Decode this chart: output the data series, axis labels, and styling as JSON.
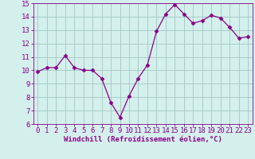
{
  "x": [
    0,
    1,
    2,
    3,
    4,
    5,
    6,
    7,
    8,
    9,
    10,
    11,
    12,
    13,
    14,
    15,
    16,
    17,
    18,
    19,
    20,
    21,
    22,
    23
  ],
  "y": [
    9.9,
    10.2,
    10.2,
    11.1,
    10.2,
    10.0,
    10.0,
    9.4,
    7.6,
    6.5,
    8.1,
    9.4,
    10.4,
    12.9,
    14.2,
    14.9,
    14.2,
    13.5,
    13.7,
    14.1,
    13.9,
    13.2,
    12.4,
    12.5
  ],
  "line_color": "#880088",
  "marker": "D",
  "marker_size": 2.5,
  "bg_color": "#d4f0ec",
  "grid_color": "#a8ccc8",
  "xlabel": "Windchill (Refroidissement éolien,°C)",
  "ylim": [
    6,
    15
  ],
  "xlim": [
    -0.5,
    23.5
  ],
  "yticks": [
    6,
    7,
    8,
    9,
    10,
    11,
    12,
    13,
    14,
    15
  ],
  "xtick_labels": [
    "0",
    "1",
    "2",
    "3",
    "4",
    "5",
    "6",
    "7",
    "8",
    "9",
    "10",
    "11",
    "12",
    "13",
    "14",
    "15",
    "16",
    "17",
    "18",
    "19",
    "20",
    "21",
    "22",
    "23"
  ],
  "xlabel_fontsize": 6.5,
  "tick_fontsize": 6.5
}
